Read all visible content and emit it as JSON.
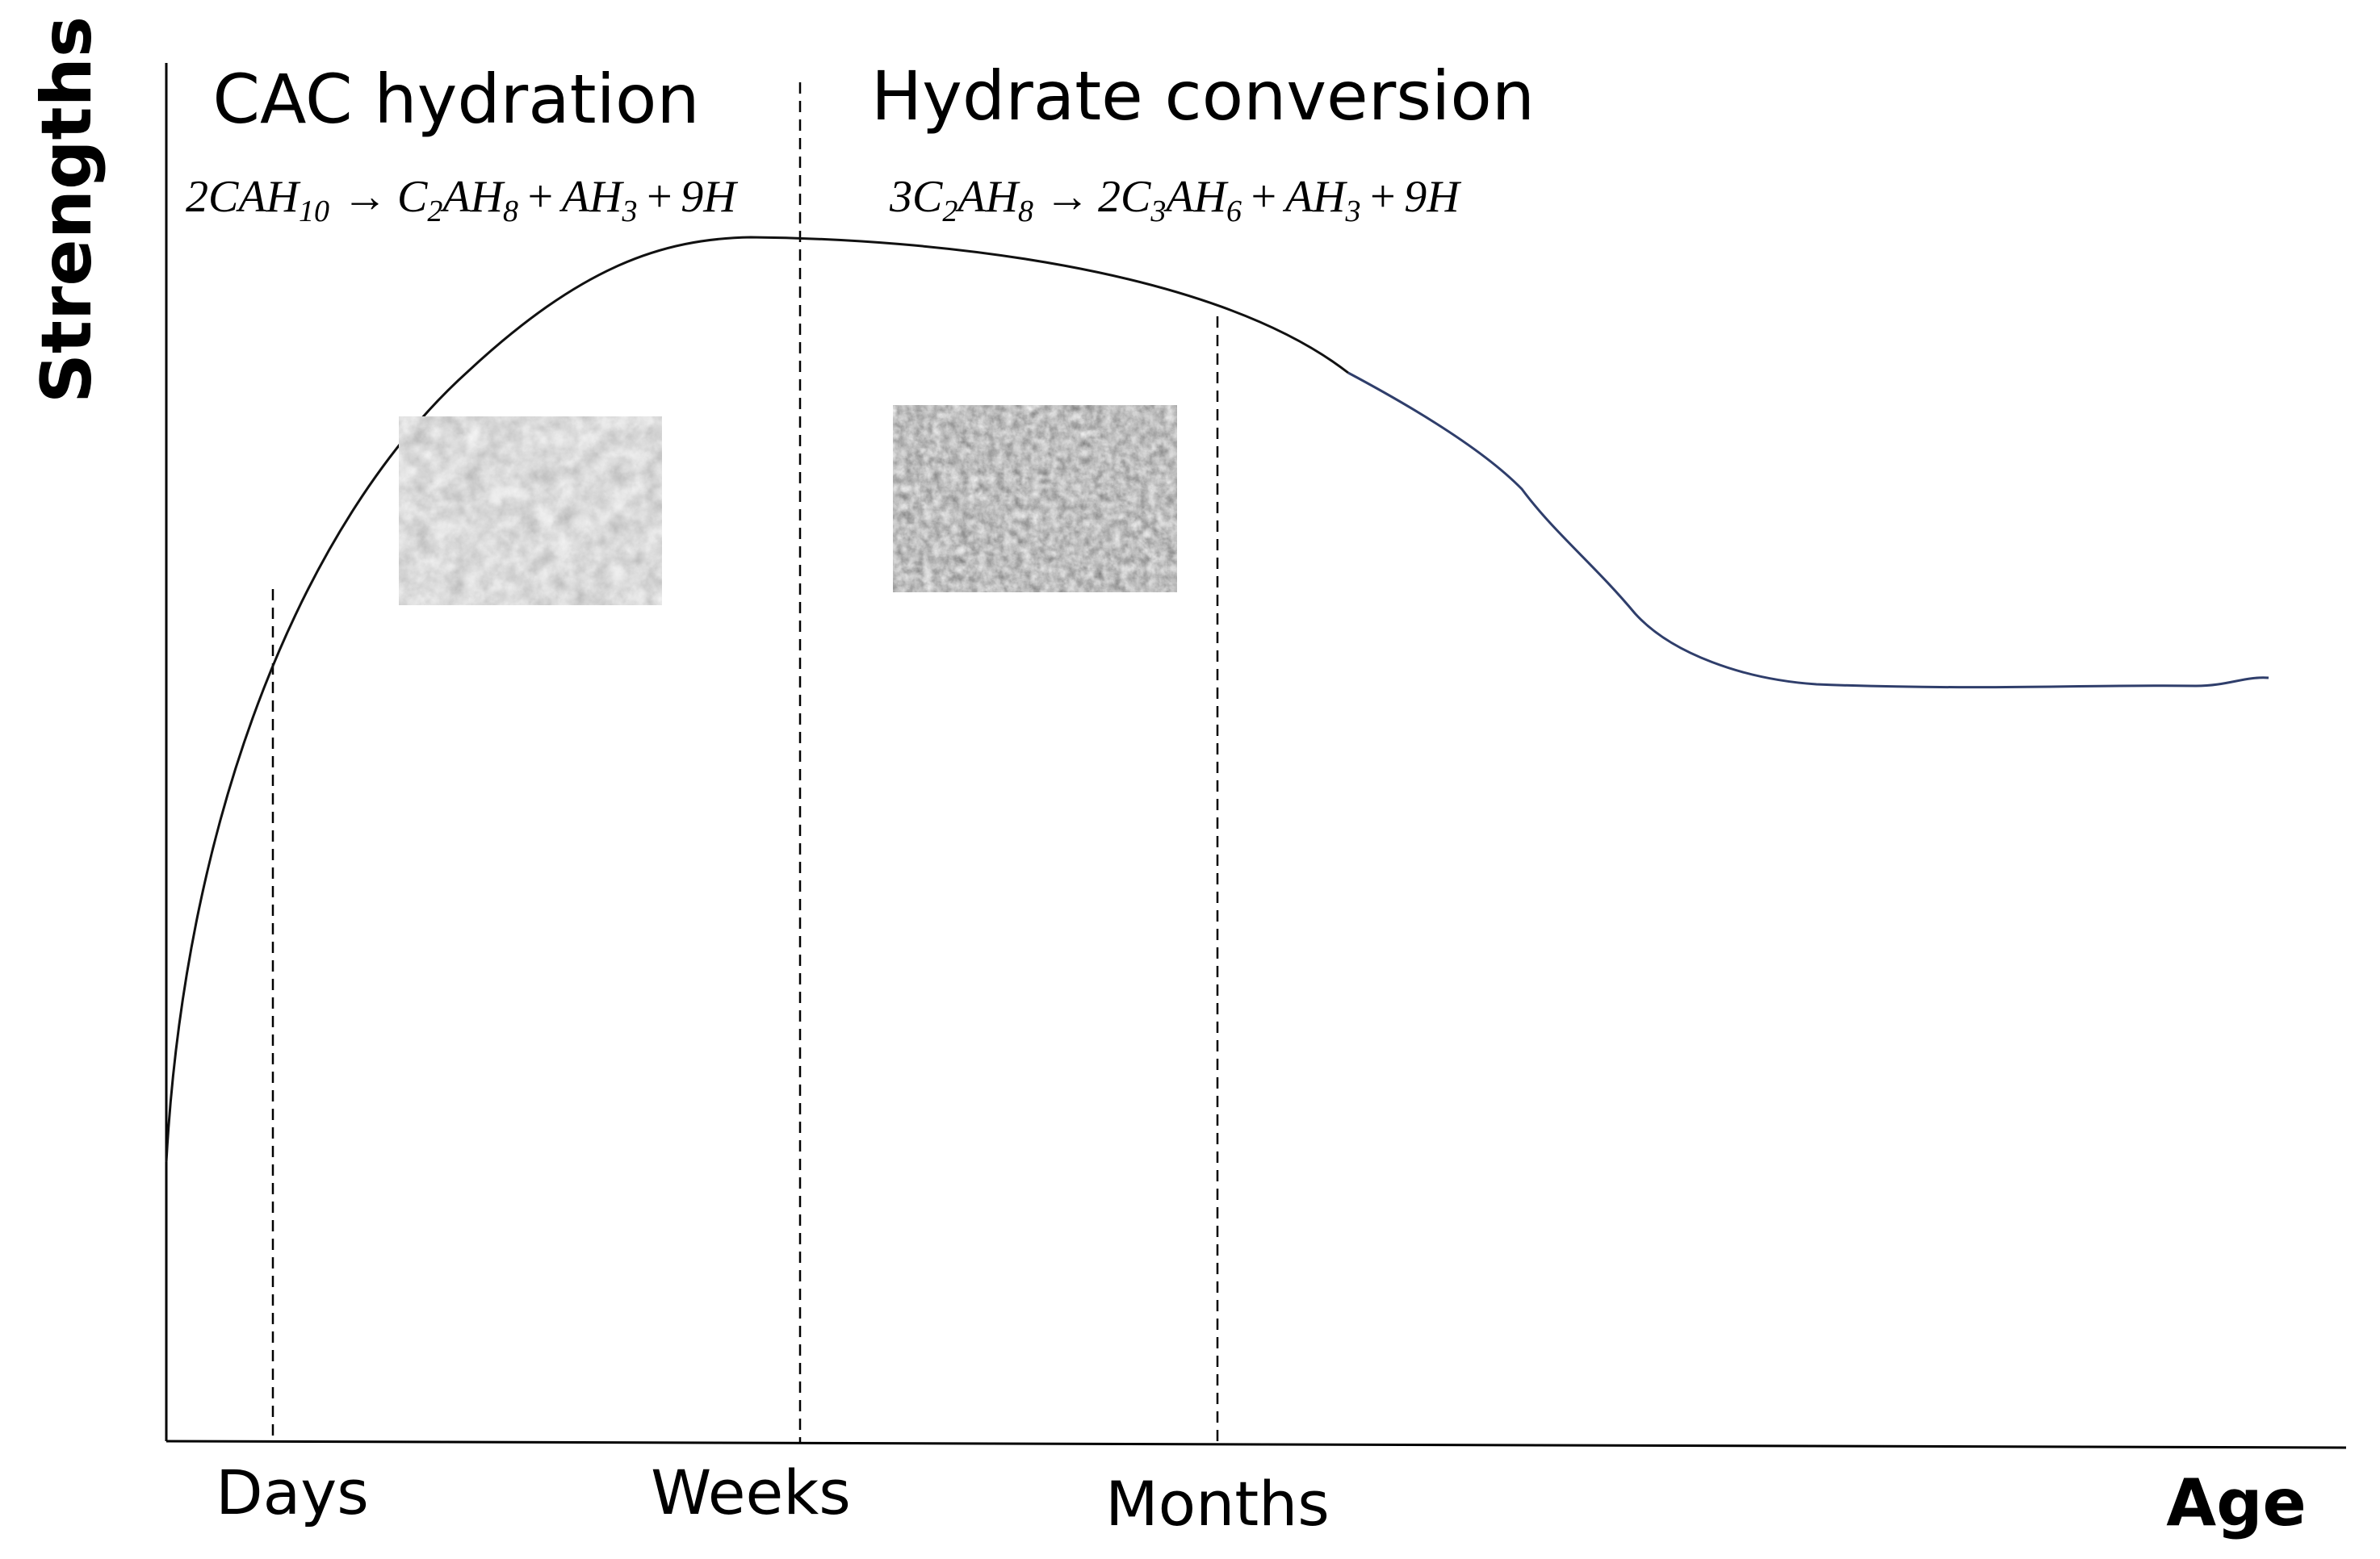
{
  "axes": {
    "y_label": "Strengths",
    "x_label": "Age"
  },
  "time_marks": [
    {
      "label": "Days"
    },
    {
      "label": "Weeks"
    },
    {
      "label": "Months"
    }
  ],
  "phases": [
    {
      "title": "CAC hydration",
      "equation": {
        "r1_coef": "2",
        "r1_a": "CAH",
        "r1_a_sub": "10",
        "arrow": "→",
        "p1_a": "C",
        "p1_a_sub": "2",
        "p1_b": "AH",
        "p1_b_sub": "8",
        "plus1": "+",
        "p2": "AH",
        "p2_sub": "3",
        "plus2": "+",
        "p3": "9H"
      },
      "micrograph": "sem-micrograph-cah10"
    },
    {
      "title": "Hydrate conversion",
      "equation": {
        "r1_coef": "3",
        "r1_a": "C",
        "r1_a_sub": "2",
        "r1_b": "AH",
        "r1_b_sub": "8",
        "arrow": "→",
        "p1_coef": "2",
        "p1_a": "C",
        "p1_a_sub": "3",
        "p1_b": "AH",
        "p1_b_sub": "6",
        "plus1": "+",
        "p2": "AH",
        "p2_sub": "3",
        "plus2": "+",
        "p3": "9H"
      },
      "micrograph": "sem-micrograph-c3ah6"
    }
  ],
  "colors": {
    "line": "#000000",
    "curve_early": "#111111",
    "curve_late": "#2f3e6b"
  }
}
